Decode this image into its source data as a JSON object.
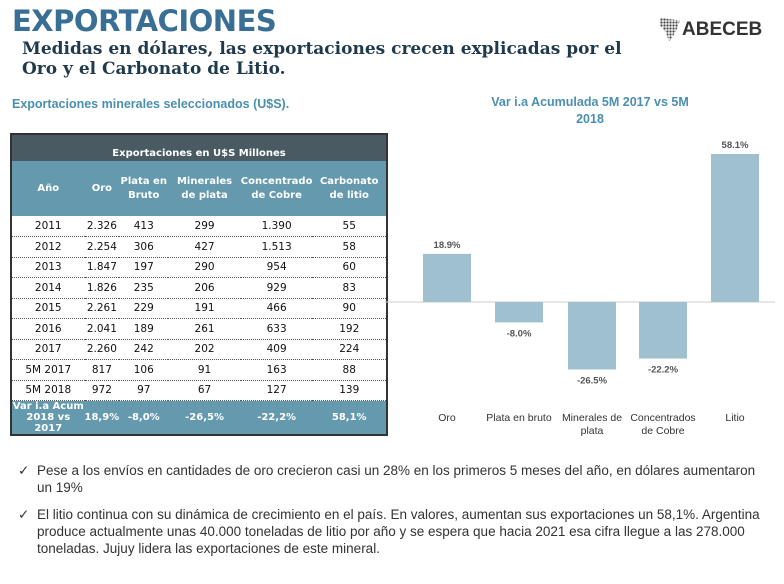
{
  "header": {
    "title": "EXPORTACIONES",
    "subtitle": "Medidas en dólares, las exportaciones crecen explicadas por el Oro y el Carbonato de Litio.",
    "logo_text": "ABECEB"
  },
  "table": {
    "section_title": "Exportaciones minerales seleccionados (U$S).",
    "title": "Exportaciones en U$S Millones",
    "columns": [
      "Año",
      "Oro",
      "Plata en Bruto",
      "Minerales de plata",
      "Concentrado de Cobre",
      "Carbonato de litio"
    ],
    "rows": [
      [
        "2011",
        "2.326",
        "413",
        "299",
        "1.390",
        "55"
      ],
      [
        "2012",
        "2.254",
        "306",
        "427",
        "1.513",
        "58"
      ],
      [
        "2013",
        "1.847",
        "197",
        "290",
        "954",
        "60"
      ],
      [
        "2014",
        "1.826",
        "235",
        "206",
        "929",
        "83"
      ],
      [
        "2015",
        "2.261",
        "229",
        "191",
        "466",
        "90"
      ],
      [
        "2016",
        "2.041",
        "189",
        "261",
        "633",
        "192"
      ],
      [
        "2017",
        "2.260",
        "242",
        "202",
        "409",
        "224"
      ],
      [
        "5M 2017",
        "817",
        "106",
        "91",
        "163",
        "88"
      ],
      [
        "5M 2018",
        "972",
        "97",
        "67",
        "127",
        "139"
      ]
    ],
    "footer": [
      "Var i.a Acum 2018 vs 2017",
      "18,9%",
      "-8,0%",
      "-26,5%",
      "-22,2%",
      "58,1%"
    ]
  },
  "chart_data": {
    "type": "bar",
    "title": "Var i.a Acumulada 5M 2017 vs 5M 2018",
    "categories": [
      "Oro",
      "Plata en bruto",
      "Minerales de plata",
      "Concentrados de Cobre",
      "Litio"
    ],
    "values": [
      18.9,
      -8.0,
      -26.5,
      -22.2,
      58.1
    ],
    "labels": [
      "18.9%",
      "-8.0%",
      "-26.5%",
      "-22.2%",
      "58.1%"
    ],
    "color": "#9fc1cf",
    "ylim": [
      -30,
      60
    ]
  },
  "bullets": [
    "Pese a los envíos en cantidades de oro crecieron casi un 28% en los primeros 5 meses del año, en dólares aumentaron un 19%",
    "El litio continua con su dinámica de crecimiento en el país. En valores, aumentan sus exportaciones un 58,1%. Argentina produce actualmente unas 40.000 toneladas de litio por año y se espera que hacia 2021 esa cifra llegue a las 278.000 toneladas. Jujuy lidera las exportaciones de este mineral."
  ],
  "check_icon": "✓"
}
